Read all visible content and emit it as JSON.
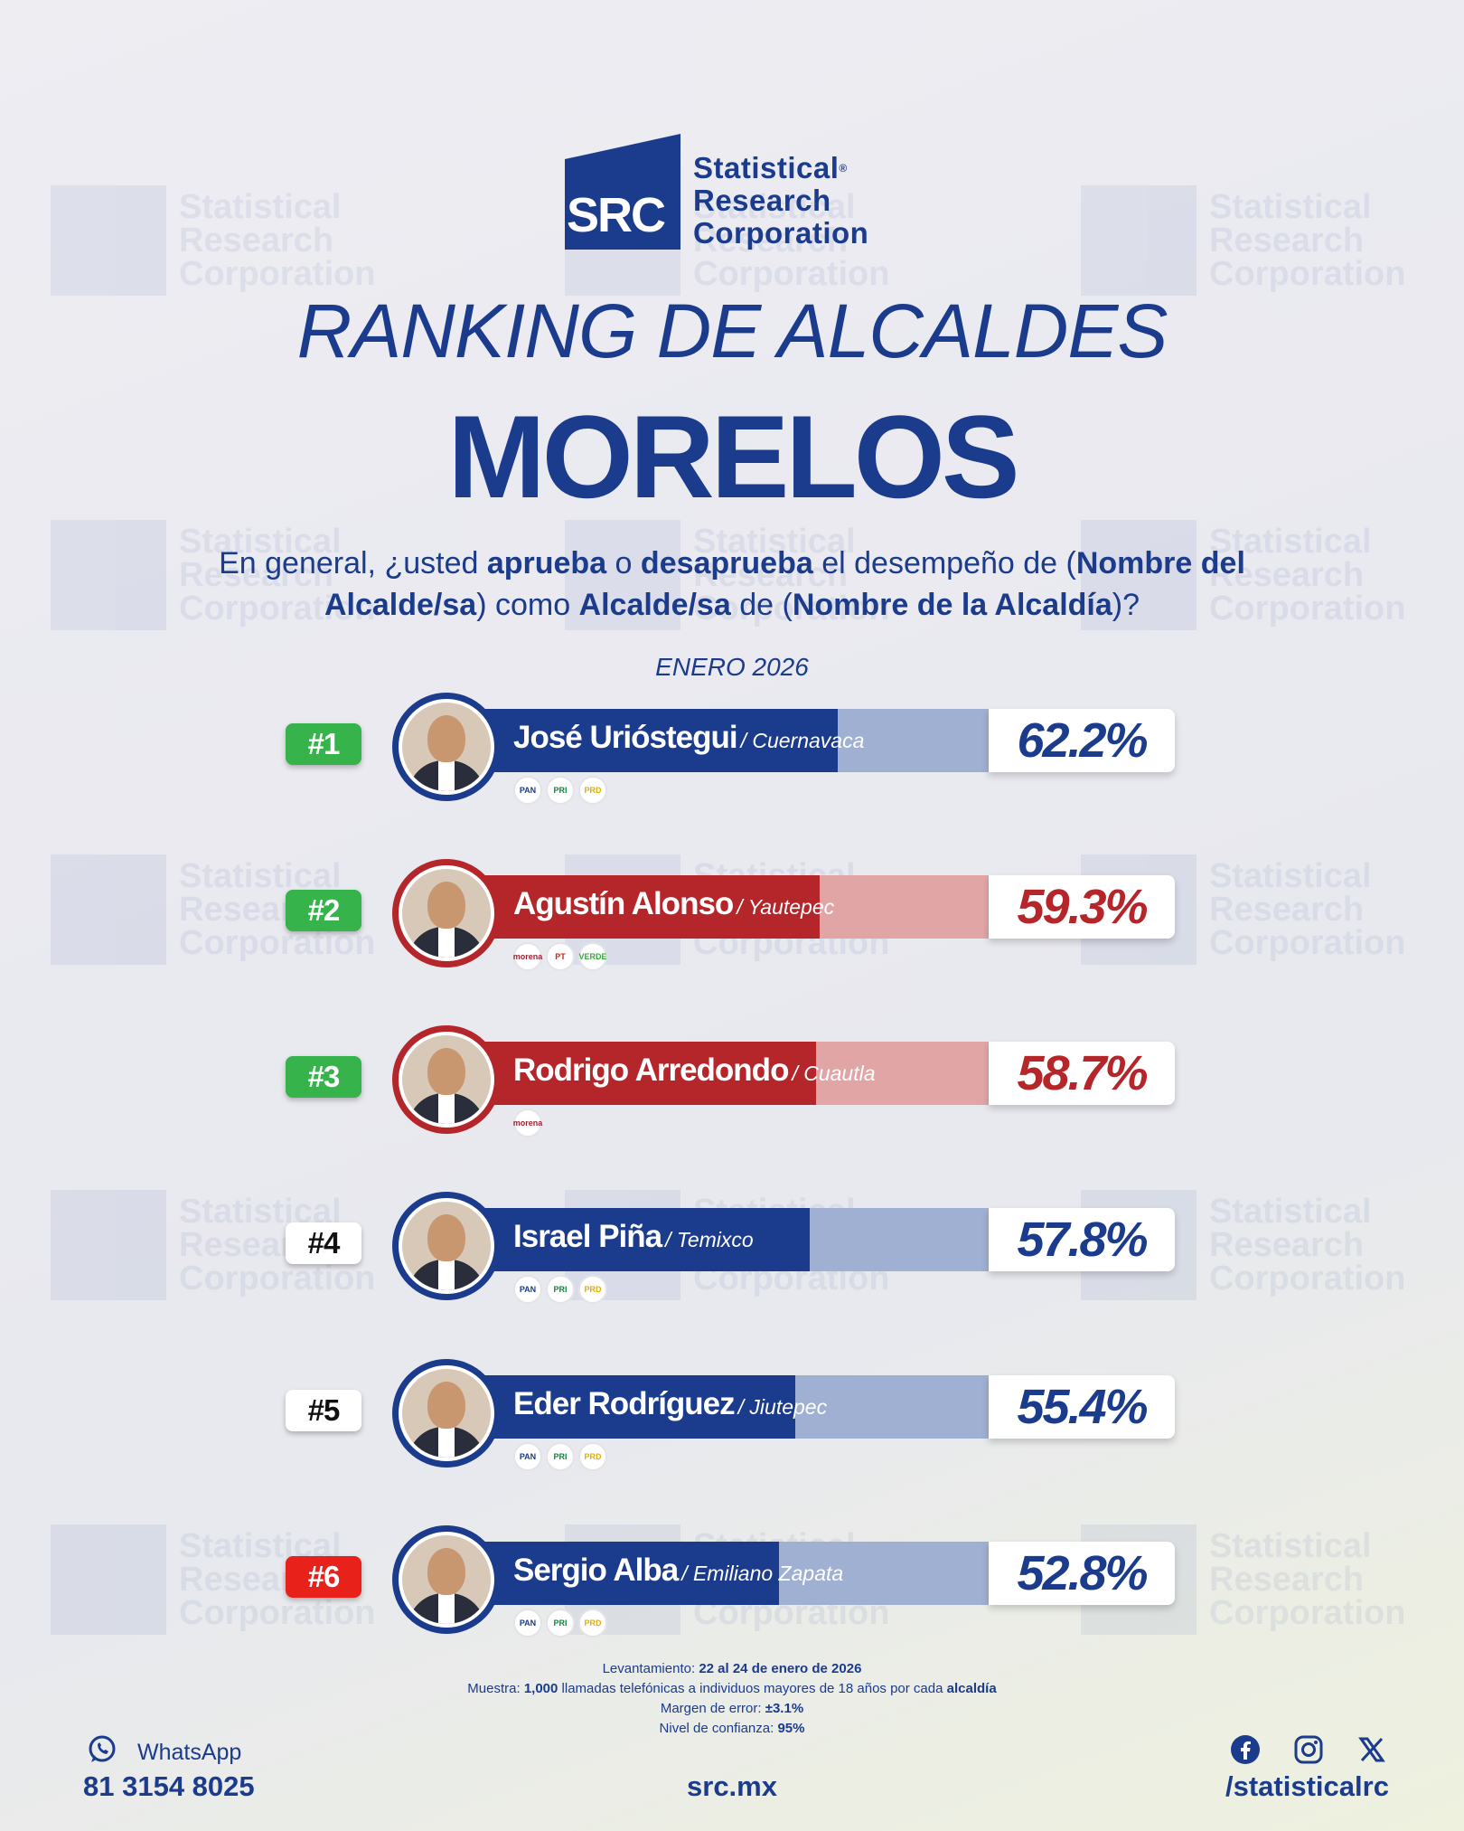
{
  "brand": {
    "logo_mark": "SRC",
    "name_line1": "Statistical",
    "name_line2": "Research",
    "name_line3": "Corporation",
    "registered": "®",
    "colors": {
      "navy": "#1b3b8c",
      "red": "#b5262b",
      "green": "#36b34a",
      "red_badge": "#e8211b"
    }
  },
  "header": {
    "title": "RANKING DE ALCALDES",
    "subtitle": "MORELOS",
    "q_p1": "En general, ¿usted ",
    "q_b1": "aprueba",
    "q_p2": " o ",
    "q_b2": "desaprueba",
    "q_p3": " el desempeño de (",
    "q_b3": "Nombre del Alcalde/sa",
    "q_p4": ") como ",
    "q_b4": "Alcalde/sa",
    "q_p5": " de (",
    "q_b5": "Nombre de la Alcaldía",
    "q_p6": ")?",
    "period": "ENERO 2026"
  },
  "chart_data": {
    "type": "bar",
    "title": "RANKING DE ALCALDES",
    "subtitle": "MORELOS",
    "categories": [
      "José Urióstegui",
      "Agustín Alonso",
      "Rodrigo Arredondo",
      "Israel Piña",
      "Eder Rodríguez",
      "Sergio Alba"
    ],
    "values": [
      62.2,
      59.3,
      58.7,
      57.8,
      55.4,
      52.8
    ],
    "unit": "%",
    "rows": [
      {
        "rank": "#1",
        "name": "José Urióstegui",
        "city": "/ Cuernavaca",
        "value": 62.2,
        "label": "62.2%",
        "color": "blue",
        "rank_style": "green",
        "parties": [
          "PAN",
          "PRI",
          "PRD"
        ]
      },
      {
        "rank": "#2",
        "name": "Agustín Alonso",
        "city": "/ Yautepec",
        "value": 59.3,
        "label": "59.3%",
        "color": "red",
        "rank_style": "green",
        "parties": [
          "morena",
          "PT",
          "VERDE"
        ]
      },
      {
        "rank": "#3",
        "name": "Rodrigo Arredondo",
        "city": "/ Cuautla",
        "value": 58.7,
        "label": "58.7%",
        "color": "red",
        "rank_style": "green",
        "parties": [
          "morena"
        ]
      },
      {
        "rank": "#4",
        "name": "Israel Piña",
        "city": "/ Temixco",
        "value": 57.8,
        "label": "57.8%",
        "color": "blue",
        "rank_style": "white",
        "parties": [
          "PAN",
          "PRI",
          "PRD"
        ]
      },
      {
        "rank": "#5",
        "name": "Eder Rodríguez",
        "city": "/ Jiutepec",
        "value": 55.4,
        "label": "55.4%",
        "color": "blue",
        "rank_style": "white",
        "parties": [
          "PAN",
          "PRI",
          "PRD"
        ]
      },
      {
        "rank": "#6",
        "name": "Sergio Alba",
        "city": "/ Emiliano Zapata",
        "value": 52.8,
        "label": "52.8%",
        "color": "blue",
        "rank_style": "red",
        "parties": [
          "PAN",
          "PRI",
          "PRD"
        ]
      }
    ]
  },
  "footnote": {
    "l1_label": "Levantamiento: ",
    "l1_value": "22 al 24 de enero de 2026",
    "l2_label": "Muestra: ",
    "l2_value": "1,000",
    "l2_mid": " llamadas telefónicas a individuos mayores de 18 años por cada ",
    "l2_end": "alcaldía",
    "l3_label": "Margen de error: ",
    "l3_value": "±3.1%",
    "l4_label": "Nivel de confianza: ",
    "l4_value": "95%"
  },
  "contact": {
    "whatsapp_label": "WhatsApp",
    "phone": "81 3154 8025",
    "site": "src.mx",
    "handle": "/statisticalrc",
    "icons": [
      "whatsapp-icon",
      "facebook-icon",
      "instagram-icon",
      "x-icon"
    ]
  }
}
